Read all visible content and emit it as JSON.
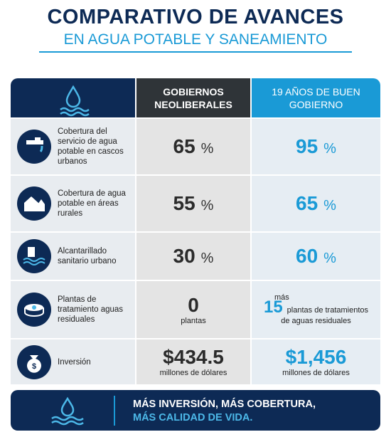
{
  "header": {
    "title": "COMPARATIVO DE AVANCES",
    "subtitle": "EN AGUA POTABLE Y SANEAMIENTO"
  },
  "table": {
    "columns": [
      "GOBIERNOS NEOLIBERALES",
      "19 AÑOS DE BUEN GOBIERNO"
    ],
    "rows": [
      {
        "label": "Cobertura del servicio de agua potable en cascos urbanos",
        "left": {
          "value": "65",
          "unit": "%"
        },
        "right": {
          "value": "95",
          "unit": "%"
        }
      },
      {
        "label": "Cobertura de agua potable en áreas rurales",
        "left": {
          "value": "55",
          "unit": "%"
        },
        "right": {
          "value": "65",
          "unit": "%"
        }
      },
      {
        "label": "Alcantarillado sanitario urbano",
        "left": {
          "value": "30",
          "unit": "%"
        },
        "right": {
          "value": "60",
          "unit": "%"
        }
      },
      {
        "label": "Plantas de tratamiento aguas residuales",
        "left": {
          "value": "0",
          "note": "plantas"
        },
        "right": {
          "prefix": "más",
          "value": "15",
          "note": "plantas de tratamientos de aguas residuales"
        }
      },
      {
        "label": "Inversión",
        "left": {
          "value": "$434.5",
          "note": "millones de dólares"
        },
        "right": {
          "value": "$1,456",
          "note": "millones de dólares"
        }
      }
    ]
  },
  "footer": {
    "line1": "MÁS INVERSIÓN, MÁS COBERTURA,",
    "line2": "MÁS CALIDAD DE VIDA."
  }
}
